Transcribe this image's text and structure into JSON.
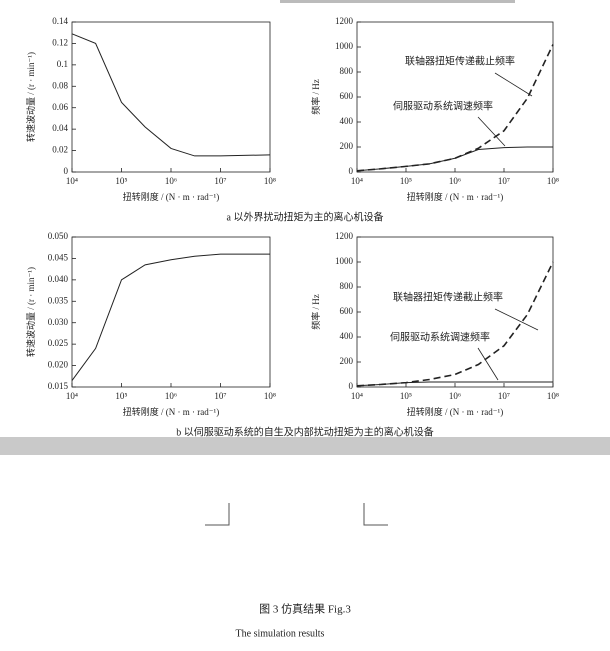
{
  "chart_data": [
    {
      "type": "line",
      "log_x": true,
      "x_label": "扭转刚度 / (N · m · rad⁻¹)",
      "y_label": "转速波动量 / (r · min⁻¹)",
      "xlim": [
        10000,
        100000000
      ],
      "xticks": [
        {
          "value": 10000,
          "label": "10⁴"
        },
        {
          "value": 100000,
          "label": "10⁵"
        },
        {
          "value": 1000000,
          "label": "10⁶"
        },
        {
          "value": 10000000,
          "label": "10⁷"
        },
        {
          "value": 100000000,
          "label": "10⁸"
        }
      ],
      "ylim": [
        0,
        0.14
      ],
      "yticks": [
        0,
        0.02,
        0.04,
        0.06,
        0.08,
        0.1,
        0.12,
        0.14
      ],
      "x": [
        10000,
        30000,
        100000,
        300000,
        1000000,
        3000000,
        10000000,
        100000000
      ],
      "series": [
        {
          "color": "#222222",
          "style": "solid",
          "values": [
            0.129,
            0.12,
            0.065,
            0.042,
            0.022,
            0.015,
            0.015,
            0.016
          ]
        }
      ]
    },
    {
      "type": "line",
      "log_x": true,
      "x_label": "扭转刚度 / (N · m · rad⁻¹)",
      "y_label": "频率 / Hz",
      "xlim": [
        10000,
        100000000
      ],
      "xticks": [
        {
          "value": 10000,
          "label": "10⁴"
        },
        {
          "value": 100000,
          "label": "10⁵"
        },
        {
          "value": 1000000,
          "label": "10⁶"
        },
        {
          "value": 10000000,
          "label": "10⁷"
        },
        {
          "value": 100000000,
          "label": "10⁸"
        }
      ],
      "ylim": [
        0,
        1200
      ],
      "yticks": [
        0,
        200,
        400,
        600,
        800,
        1000,
        1200
      ],
      "x": [
        10000,
        30000,
        100000,
        300000,
        1000000,
        3000000,
        10000000,
        30000000,
        100000000
      ],
      "series": [
        {
          "name": "联轴器扭矩传递截止频率",
          "color": "#222222",
          "style": "dashed",
          "values": [
            10,
            25,
            45,
            65,
            110,
            190,
            330,
            590,
            1020
          ]
        },
        {
          "name": "伺服驱动系统调速频率",
          "color": "#222222",
          "style": "solid",
          "values": [
            10,
            25,
            45,
            65,
            110,
            180,
            195,
            200,
            200
          ]
        }
      ]
    },
    {
      "type": "line",
      "log_x": true,
      "x_label": "扭转刚度 / (N · m · rad⁻¹)",
      "y_label": "转速波动量 / (r · min⁻¹)",
      "xlim": [
        10000,
        100000000
      ],
      "xticks": [
        {
          "value": 10000,
          "label": "10⁴"
        },
        {
          "value": 100000,
          "label": "10⁵"
        },
        {
          "value": 1000000,
          "label": "10⁶"
        },
        {
          "value": 10000000,
          "label": "10⁷"
        },
        {
          "value": 100000000,
          "label": "10⁸"
        }
      ],
      "ylim": [
        0.015,
        0.05
      ],
      "yticks": [
        0.015,
        {
          "value": 0.02,
          "label": "0.020"
        },
        0.025,
        {
          "value": 0.03,
          "label": "0.030"
        },
        0.035,
        {
          "value": 0.04,
          "label": "0.040"
        },
        0.045,
        {
          "value": 0.05,
          "label": "0.050"
        }
      ],
      "x": [
        10000,
        30000,
        100000,
        300000,
        1000000,
        3000000,
        10000000,
        100000000
      ],
      "series": [
        {
          "color": "#222222",
          "style": "solid",
          "values": [
            0.0165,
            0.024,
            0.04,
            0.0435,
            0.0447,
            0.0455,
            0.046,
            0.046
          ]
        }
      ]
    },
    {
      "type": "line",
      "log_x": true,
      "x_label": "扭转刚度 / (N · m · rad⁻¹)",
      "y_label": "频率 / Hz",
      "xlim": [
        10000,
        100000000
      ],
      "xticks": [
        {
          "value": 10000,
          "label": "10⁴"
        },
        {
          "value": 100000,
          "label": "10⁵"
        },
        {
          "value": 1000000,
          "label": "10⁶"
        },
        {
          "value": 10000000,
          "label": "10⁷"
        },
        {
          "value": 100000000,
          "label": "10⁸"
        }
      ],
      "ylim": [
        0,
        1200
      ],
      "yticks": [
        0,
        200,
        400,
        600,
        800,
        1000,
        1200
      ],
      "x": [
        10000,
        30000,
        100000,
        300000,
        1000000,
        3000000,
        10000000,
        30000000,
        100000000
      ],
      "series": [
        {
          "name": "联轴器扭矩传递截止频率",
          "color": "#222222",
          "style": "dashed",
          "values": [
            10,
            20,
            35,
            60,
            100,
            180,
            330,
            580,
            1000
          ]
        },
        {
          "name": "伺服驱动系统调速频率",
          "color": "#222222",
          "style": "solid",
          "values": [
            10,
            20,
            35,
            40,
            40,
            40,
            40,
            40,
            40
          ]
        }
      ]
    }
  ],
  "subcaptions": [
    "a  以外界扰动扭矩为主的离心机设备",
    "b  以伺服驱动系统的自生及内部扰动扭矩为主的离心机设备"
  ],
  "figure_caption": "图 3 仿真结果 Fig.3",
  "figure_caption_en": "The simulation results"
}
